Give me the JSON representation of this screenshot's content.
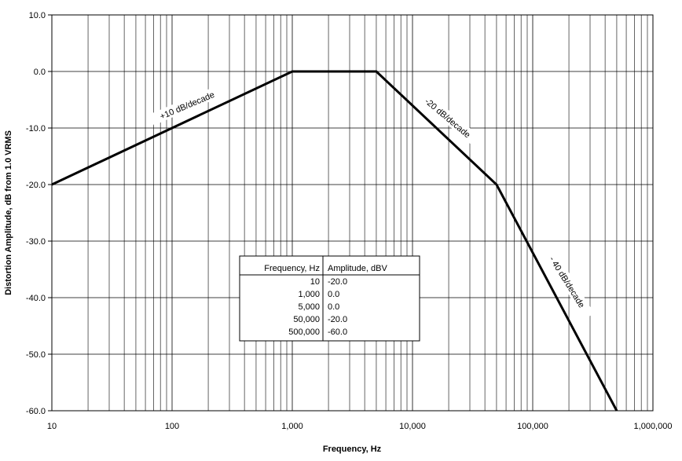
{
  "chart_data": {
    "type": "line",
    "title": "",
    "xlabel": "Frequency, Hz",
    "ylabel": "Distortion Amplitude, dB from 1.0 VRMS",
    "x_scale": "log",
    "xlim": [
      10,
      1000000
    ],
    "ylim": [
      -60,
      10
    ],
    "grid": true,
    "x_tick_values": [
      10,
      100,
      1000,
      10000,
      100000,
      1000000
    ],
    "x_tick_labels": [
      "10",
      "100",
      "1,000",
      "10,000",
      "100,000",
      "1,000,000"
    ],
    "y_tick_values": [
      10,
      0,
      -10,
      -20,
      -30,
      -40,
      -50,
      -60
    ],
    "y_tick_labels": [
      "10.0",
      "0.0",
      "-10.0",
      "-20.0",
      "-30.0",
      "-40.0",
      "-50.0",
      "-60.0"
    ],
    "series": [
      {
        "x": [
          10,
          1000,
          5000,
          50000,
          500000
        ],
        "y": [
          -20,
          0,
          0,
          -20,
          -60
        ]
      }
    ],
    "annotations": [
      {
        "text": "+10 dB/decade"
      },
      {
        "text": "-20 dB/decade"
      },
      {
        "text": "- 40 dB/decade"
      }
    ],
    "table": {
      "headers": [
        "Frequency, Hz",
        "Amplitude, dBV"
      ],
      "rows": [
        [
          "10",
          "-20.0"
        ],
        [
          "1,000",
          "0.0"
        ],
        [
          "5,000",
          "0.0"
        ],
        [
          "50,000",
          "-20.0"
        ],
        [
          "500,000",
          "-60.0"
        ]
      ]
    }
  }
}
